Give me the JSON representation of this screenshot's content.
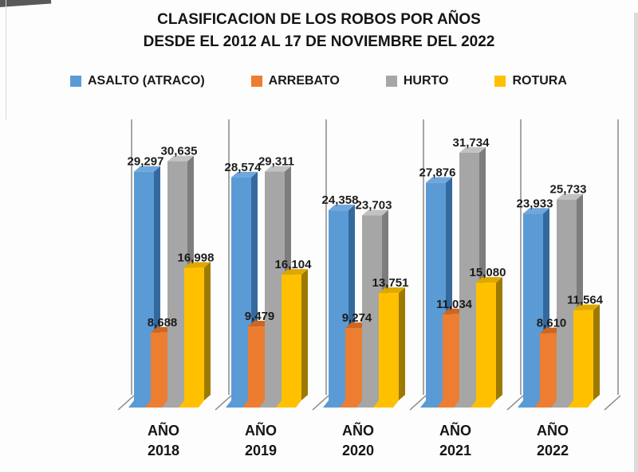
{
  "title": {
    "line1": "CLASIFICACION DE LOS ROBOS POR AÑOS",
    "line2": "DESDE EL 2012 AL 17 DE NOVIEMBRE DEL 2022"
  },
  "chart_data": {
    "type": "bar",
    "style": "3d-clustered-column",
    "title": "CLASIFICACION DE LOS ROBOS POR AÑOS DESDE EL 2012 AL 17 DE NOVIEMBRE DEL 2022",
    "categories": [
      "AÑO 2018",
      "AÑO 2019",
      "AÑO 2020",
      "AÑO 2021",
      "AÑO 2022"
    ],
    "series": [
      {
        "name": "ASALTO (ATRACO)",
        "color": "#5b9bd5",
        "color_top": "#6fa7db",
        "color_side": "#34699e",
        "values": [
          29297,
          28574,
          24358,
          27876,
          23933
        ]
      },
      {
        "name": "ARREBATO",
        "color": "#ed7d31",
        "color_top": "#cd6620",
        "color_side": "#b5561c",
        "values": [
          8688,
          9479,
          9274,
          11034,
          8610
        ]
      },
      {
        "name": "HURTO",
        "color": "#a6a6a6",
        "color_top": "#c2c2c2",
        "color_side": "#7d7d7d",
        "values": [
          30635,
          29311,
          23703,
          31734,
          25733
        ]
      },
      {
        "name": "ROTURA",
        "color": "#ffc000",
        "color_top": "#dda800",
        "color_side": "#9c7a00",
        "values": [
          16998,
          16104,
          13751,
          15080,
          11564
        ]
      }
    ],
    "ylim": [
      0,
      36000
    ],
    "data_labels": true,
    "number_format": "thousands-comma",
    "legend_position": "top",
    "gridlines": "vertical-category-separators",
    "axis_line_color": "#8a8a8a"
  }
}
